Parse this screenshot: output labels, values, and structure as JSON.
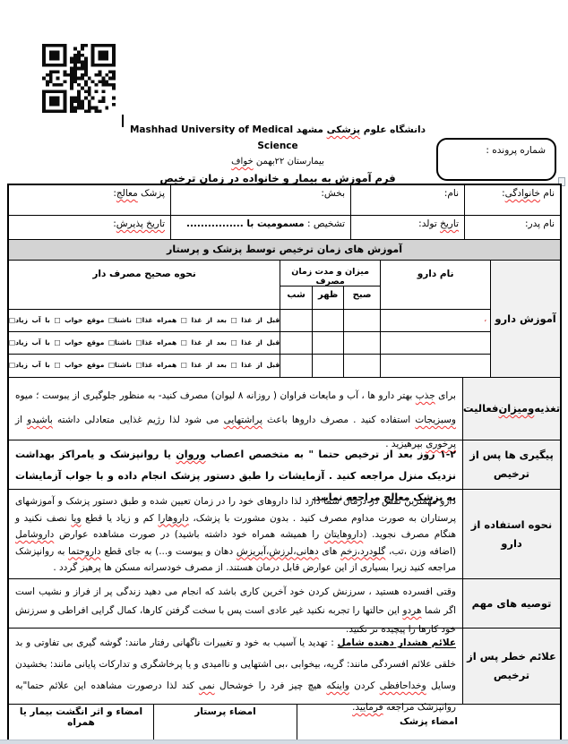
{
  "header": {
    "university_line": "دانشگاه علوم «پزشکی» مشهد Mashhad University of Medical Science",
    "hospital_line": "بیمارستان ۲۲بهمن «خواف»",
    "form_title": "فرم آموزش به «بیمار» و خانواده در زمان ترخیص",
    "case_number_label": "شماره پرونده :"
  },
  "patient_info": {
    "last_name_label": "نام «خانوادگی»:",
    "first_name_label": "نام:",
    "ward_label": "بخش:",
    "physician_label": "پزشک «معالج»:",
    "father_name_label": "نام پدر:",
    "birth_date_label": "«تاریخ» تولد:",
    "diagnosis_label": "تشخیص : ",
    "diagnosis_value": "مسمومیت با  ................",
    "admission_date_label": "«تاریخ پذیرش»:"
  },
  "band_title": "آموزش های زمان ترخیص توسط پزشک و پرستار",
  "med_table": {
    "row_label": "آموزش دارو",
    "col_drug_name": "نام دارو",
    "col_amount": "میزان و مدت زمان مصرف",
    "col_usage": "نحوه صحیح مصرف دار",
    "sub_morning": "صبح",
    "sub_noon": "ظهر",
    "sub_night": "شب",
    "stray_mark": "،",
    "usage_options": "قبل از غذا □  بعد از غذا □  همراه غذا□  ناشتا□  موقع خواب □  با آب زیاد□"
  },
  "sections": [
    {
      "label": "تغذیه «ومیزان» فعالیت",
      "text": "برای «جذب» بهتر دارو ها ، آب و مایعات فراوان ( روزانه ۸ لیوان)  مصرف کنید- به منظور جلوگیری از یبوست ؛ میوه «وسبزیجات» استفاده کنید . مصرف داروها باعث «پراشتهایی» می شود لذا رژیم غذایی متعادلی داشته «باشیدو» از «پرخوری» بپرهیزید ."
    },
    {
      "label": "پیگیری ها پس از ترخیص",
      "text": "۱-۲ روز بعد از ترخیص حتما \" به متخصص اعصاب «وروان» یا روانپزشک و یامراکز بهداشت نزدیک منزل مراجعه کنید .  آزمایشات را طبق دستور پزشک انجام داده و با جواب آزمایشات به پزشک معالج مراجعه نمایید."
    },
    {
      "label": "نحوه استفاده از دارو",
      "text": "دارو مهمترین نقش در درمان شما دارد لذا داروهای خود را در زمان تعیین شده و طبق دستور پزشک و آموزشهای پرستاران به صورت مداوم مصرف کنید . بدون مشورت با پزشک، «داروهارا» کم و زیاد یا قطع «ویا» نصف نکنید و هنگام مصرف نجوید. («داروهایتان» را همیشه همراه خود داشته باشید) در صورت مشاهده عوارض «داروشامل» (اضافه وزن ،تب، «گلودرد،زخم» های «دهانی،لرزش،آبریزش» دهان و یبوست و...) به جای قطع «داروحتما» به روانپزشک مراجعه کنید زیرا بسیاری از این عوارض قابل درمان هستند. از مصرف خودسرانه مسکن ها پرهیز گردد ."
    },
    {
      "label": "توصیه های مهم",
      "text": "وقتی افسرده هستید ، سرزنش کردن خود آخرین کاری باشد که انجام می دهید زندگی پر از فراز و نشیب است اگر شما «هردو» این حالتها را تجربه نکنید غیر عادی است پس با سخت گرفتن کارها، کمال گرایی افراطی و سرزنش خود کارها را پیچیده تر نکنید."
    },
    {
      "label": "علائم خطر پس از ترخیص",
      "text": "⟦علائم هشدار دهنده شامل⟧ :  تهدید یا آسیب به خود و تغییرات ناگهانی رفتار مانند: گوشه گیری بی تفاوتی و بد خلقی علائم افسردگی مانند: گریه، بیخوابی ،بی اشتهایی و ناامیدی و یا پرخاشگری و تدارکات پایانی مانند: بخشیدن وسایل «وخداحافظی» کردن «واینکه» هیچ چیز فرد را خوشحال «نمی» کند لذا درصورت مشاهده این علائم حتما\"به روانپزشک مراجعه «فرمایید.»"
    }
  ],
  "signatures": {
    "physician": "امضاء پزشک",
    "nurse": "امضاء پرستار",
    "patient": "امضاء و اثر انگشت بیمار یا همراه"
  }
}
